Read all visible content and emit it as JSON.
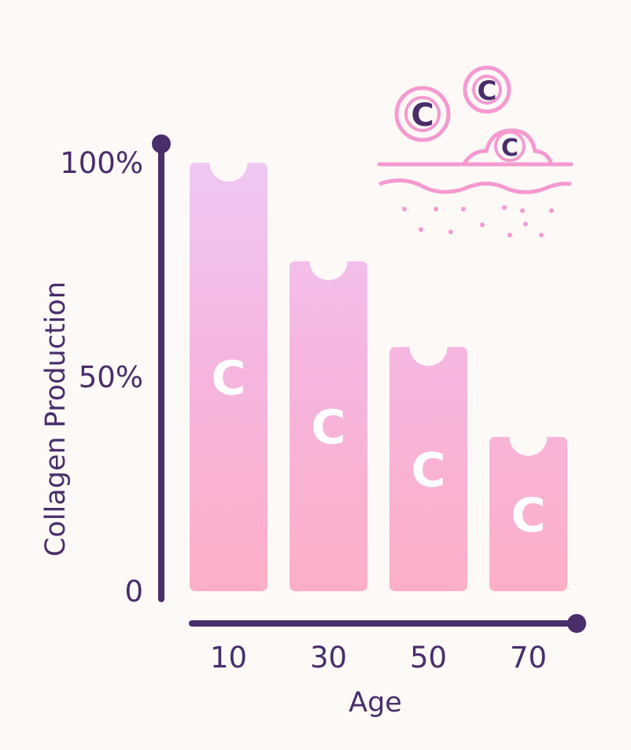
{
  "chart_data": {
    "type": "bar",
    "categories": [
      "10",
      "30",
      "50",
      "70"
    ],
    "values": [
      100,
      77,
      57,
      36
    ],
    "ylim": [
      0,
      100
    ],
    "y_ticks": [
      "0",
      "50%",
      "100%"
    ],
    "y_tick_values": [
      0,
      50,
      100
    ],
    "xlabel": "Age",
    "ylabel": "Collagen Production",
    "bar_symbol": "C",
    "grid": false,
    "colors": {
      "axis": "#4a2d6b",
      "bar_top": "#f0c8f3",
      "bar_bottom": "#fdafc8",
      "bar_symbol": "#ffffff",
      "skin_illustration": "#f59ad0"
    }
  },
  "illustration": {
    "icon": "collagen-skin-icon",
    "symbol": "C"
  }
}
